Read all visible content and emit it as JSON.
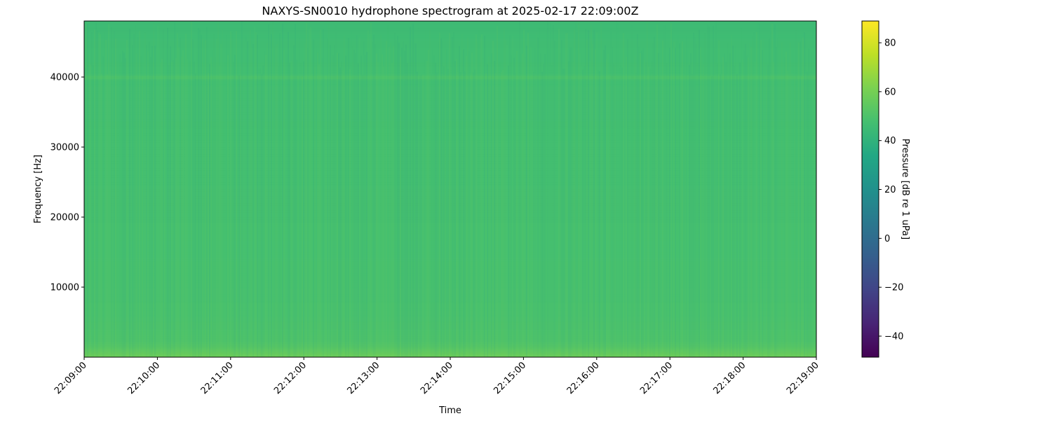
{
  "chart_data": {
    "type": "heatmap",
    "title": "NAXYS-SN0010 hydrophone spectrogram at 2025-02-17 22:09:00Z",
    "xlabel": "Time",
    "ylabel": "Frequency [Hz]",
    "x_tick_labels": [
      "22:09:00",
      "22:10:00",
      "22:11:00",
      "22:12:00",
      "22:13:00",
      "22:14:00",
      "22:15:00",
      "22:16:00",
      "22:17:00",
      "22:18:00",
      "22:19:00"
    ],
    "xlim": [
      "22:09:00",
      "22:19:00"
    ],
    "y_ticks": [
      10000,
      20000,
      30000,
      40000
    ],
    "ylim": [
      0,
      48000
    ],
    "colormap": "viridis",
    "colorbar": {
      "label": "Pressure [dB re 1 uPa]",
      "ticks": [
        -40,
        -20,
        0,
        20,
        40,
        60,
        80
      ],
      "range": [
        -48.6,
        88.9
      ]
    },
    "frequency_profile_db": [
      {
        "frequency_hz": 0,
        "db": 58
      },
      {
        "frequency_hz": 500,
        "db": 56
      },
      {
        "frequency_hz": 1500,
        "db": 52
      },
      {
        "frequency_hz": 2500,
        "db": 50
      },
      {
        "frequency_hz": 6000,
        "db": 49
      },
      {
        "frequency_hz": 10000,
        "db": 48.5
      },
      {
        "frequency_hz": 20000,
        "db": 48
      },
      {
        "frequency_hz": 30000,
        "db": 47.5
      },
      {
        "frequency_hz": 39500,
        "db": 47
      },
      {
        "frequency_hz": 40000,
        "db": 50
      },
      {
        "frequency_hz": 40500,
        "db": 47
      },
      {
        "frequency_hz": 45000,
        "db": 46
      },
      {
        "frequency_hz": 48000,
        "db": 45
      }
    ]
  }
}
